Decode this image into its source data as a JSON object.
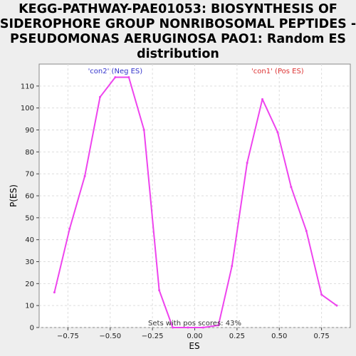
{
  "chart_data": {
    "type": "line",
    "title_lines": [
      "KEGG-PATHWAY-PAE01053: BIOSYNTHESIS OF",
      "SIDEROPHORE GROUP NONRIBOSOMAL PEPTIDES -",
      "PSEUDOMONAS AERUGINOSA PAO1: Random ES",
      "distribution"
    ],
    "xlabel": "ES",
    "ylabel": "P(ES)",
    "xlim": [
      -0.92,
      0.92
    ],
    "ylim": [
      0,
      120
    ],
    "x_ticks": [
      {
        "value": -0.75,
        "label": "−0.75"
      },
      {
        "value": -0.5,
        "label": "−0.50"
      },
      {
        "value": -0.25,
        "label": "−0.25"
      },
      {
        "value": 0,
        "label": "0.00"
      },
      {
        "value": 0.25,
        "label": "0.25"
      },
      {
        "value": 0.5,
        "label": "0.50"
      },
      {
        "value": 0.75,
        "label": "0.75"
      }
    ],
    "y_ticks": [
      {
        "value": 0,
        "label": "0"
      },
      {
        "value": 10,
        "label": "10"
      },
      {
        "value": 20,
        "label": "20"
      },
      {
        "value": 30,
        "label": "30"
      },
      {
        "value": 40,
        "label": "40"
      },
      {
        "value": 50,
        "label": "50"
      },
      {
        "value": 60,
        "label": "60"
      },
      {
        "value": 70,
        "label": "70"
      },
      {
        "value": 80,
        "label": "80"
      },
      {
        "value": 90,
        "label": "90"
      },
      {
        "value": 100,
        "label": "100"
      },
      {
        "value": 110,
        "label": "110"
      }
    ],
    "grid": true,
    "series": [
      {
        "color": "#ee44ee",
        "points": [
          {
            "x": -0.83,
            "y": 16
          },
          {
            "x": -0.74,
            "y": 45
          },
          {
            "x": -0.65,
            "y": 69
          },
          {
            "x": -0.56,
            "y": 105
          },
          {
            "x": -0.47,
            "y": 114
          },
          {
            "x": -0.39,
            "y": 114
          },
          {
            "x": -0.3,
            "y": 90
          },
          {
            "x": -0.21,
            "y": 17
          },
          {
            "x": -0.13,
            "y": 0
          },
          {
            "x": -0.04,
            "y": 0
          },
          {
            "x": 0.05,
            "y": 0
          },
          {
            "x": 0.14,
            "y": 1
          },
          {
            "x": 0.22,
            "y": 28
          },
          {
            "x": 0.31,
            "y": 75
          },
          {
            "x": 0.4,
            "y": 104
          },
          {
            "x": 0.49,
            "y": 89
          },
          {
            "x": 0.57,
            "y": 64
          },
          {
            "x": 0.66,
            "y": 44
          },
          {
            "x": 0.75,
            "y": 15
          },
          {
            "x": 0.84,
            "y": 10
          }
        ]
      }
    ],
    "annotations": {
      "neg_label": "'con2' (Neg ES)",
      "neg_color": "#3333cc",
      "pos_label": "'con1' (Pos ES)",
      "pos_color": "#dd3333",
      "pos_scores_text": "Sets with pos scores: 43%",
      "pos_scores_color": "#333333"
    }
  }
}
